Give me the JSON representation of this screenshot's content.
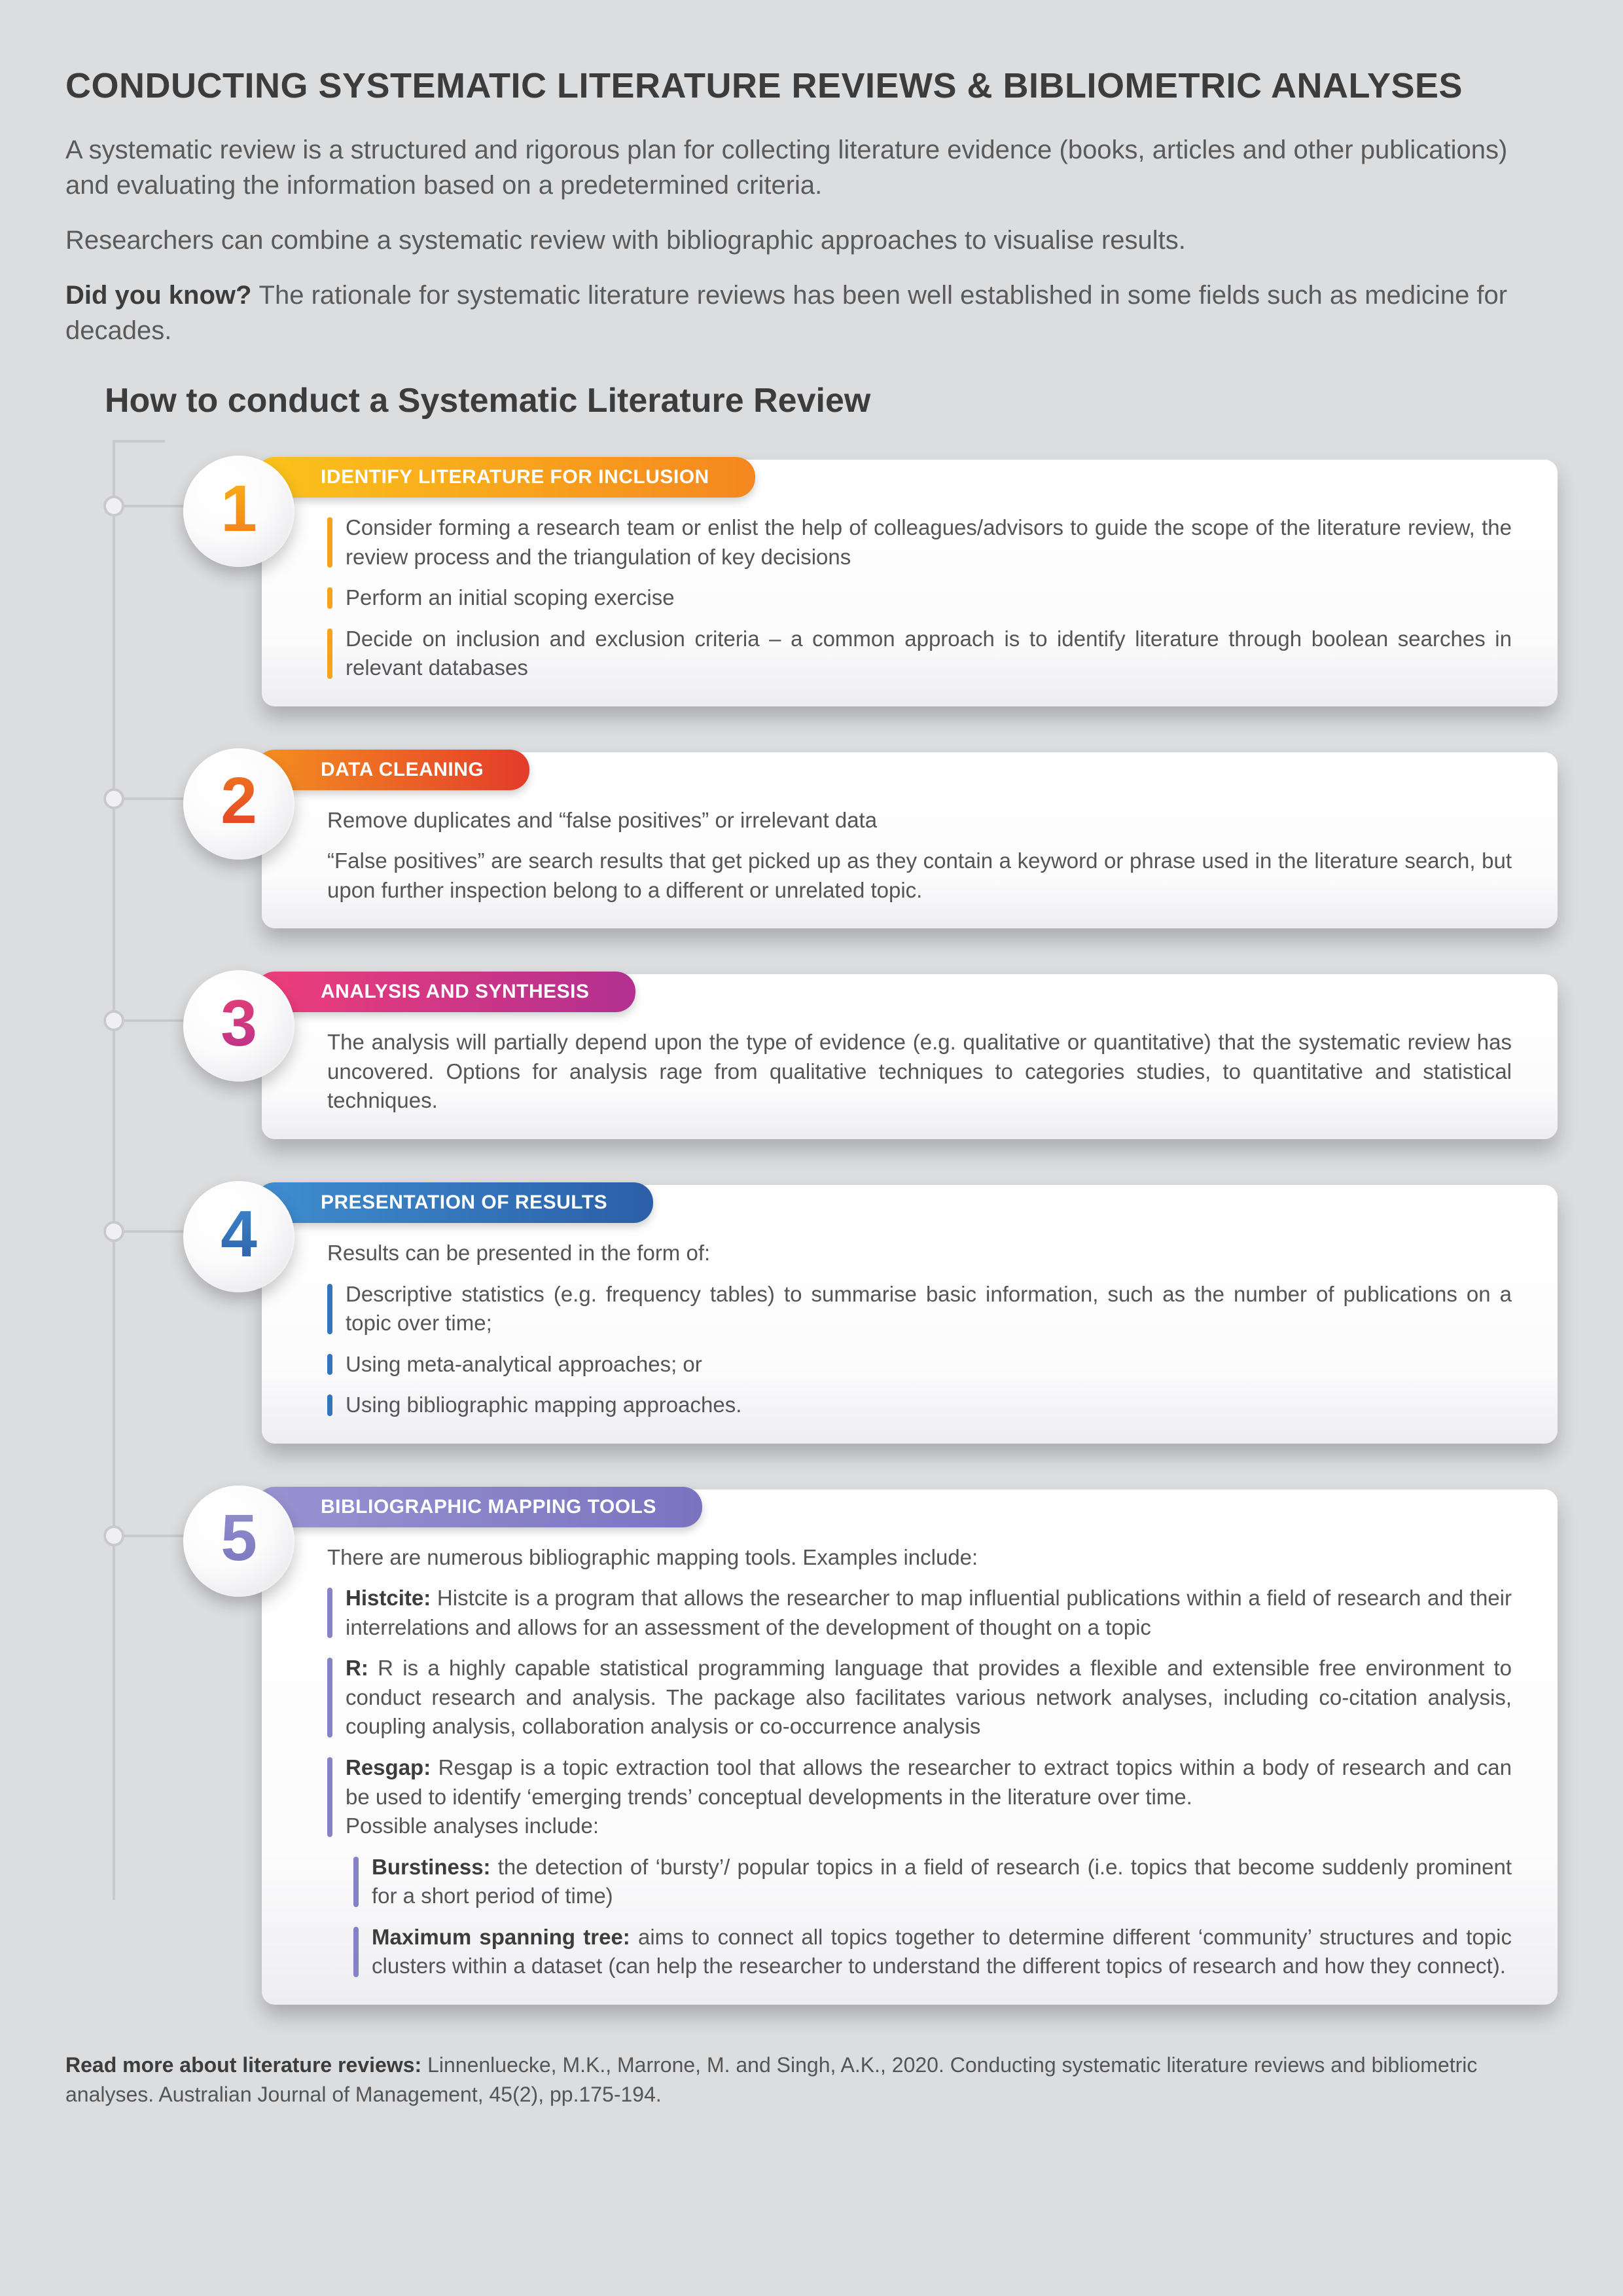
{
  "title": "CONDUCTING SYSTEMATIC LITERATURE REVIEWS & BIBLIOMETRIC ANALYSES",
  "intro": {
    "p1": "A systematic review is a structured and rigorous plan for collecting literature evidence (books, articles and other publications) and evaluating the information based on a predetermined criteria.",
    "p2": "Researchers can combine a systematic review with bibliographic approaches to visualise results.",
    "p3_lead": "Did you know? ",
    "p3_rest": "The rationale for systematic literature reviews has been well established in some fields such as medicine for decades."
  },
  "subtitle": "How to conduct a Systematic Literature Review",
  "colors": {
    "page_bg": "#dcdddf",
    "text": "#4a4a4a",
    "heading": "#3c3c3c",
    "line": "#c8c9cd"
  },
  "steps": [
    {
      "num": "1",
      "tab": "IDENTIFY LITERATURE FOR INCLUSION",
      "grad_a": "#fbc31b",
      "grad_b": "#f58720",
      "num_a": "#f9b516",
      "num_b": "#f17a1f",
      "bullet_color": "#f5a21e",
      "paras": [
        {
          "t": "Consider forming a research team or enlist the help of colleagues/advisors to guide the scope of the literature review, the review process and the triangulation of key decisions",
          "b": true
        },
        {
          "t": "Perform an initial scoping exercise",
          "b": true
        },
        {
          "t": "Decide on inclusion and exclusion criteria – a common approach is to identify literature through boolean searches in relevant databases",
          "b": true
        }
      ]
    },
    {
      "num": "2",
      "tab": "DATA CLEANING",
      "grad_a": "#f59120",
      "grad_b": "#e43b2a",
      "num_a": "#f07a1e",
      "num_b": "#e23d29",
      "bullet_color": "#ea5a24",
      "paras": [
        {
          "t": "Remove duplicates and “false positives” or irrelevant data",
          "b": false
        },
        {
          "t": "“False positives” are search results that get picked up as they contain a keyword or phrase used in the literature search, but upon further inspection belong to a different or unrelated topic.",
          "b": false
        }
      ]
    },
    {
      "num": "3",
      "tab": "ANALYSIS AND SYNTHESIS",
      "grad_a": "#ee3e7a",
      "grad_b": "#b23090",
      "num_a": "#ea3f72",
      "num_b": "#b4318e",
      "bullet_color": "#d13684",
      "paras": [
        {
          "t": "The analysis will partially depend upon the type of evidence (e.g. qualitative or quantitative) that the systematic review has uncovered. Options for analysis rage from qualitative techniques to categories studies, to quantitative and statistical techniques.",
          "b": false
        }
      ]
    },
    {
      "num": "4",
      "tab": "PRESENTATION OF RESULTS",
      "grad_a": "#3f8ed0",
      "grad_b": "#2b5fa8",
      "num_a": "#3d88cc",
      "num_b": "#2c5ea6",
      "bullet_color": "#3374bb",
      "paras": [
        {
          "t": "Results can be presented in the form of:",
          "b": false
        },
        {
          "t": "Descriptive statistics (e.g. frequency tables) to summarise basic information, such as the number of publications on a topic over time;",
          "b": true
        },
        {
          "t": "Using meta-analytical approaches; or",
          "b": true
        },
        {
          "t": "Using bibliographic mapping approaches.",
          "b": true
        }
      ]
    },
    {
      "num": "5",
      "tab": "BIBLIOGRAPHIC MAPPING TOOLS",
      "grad_a": "#9a93d2",
      "grad_b": "#7a74c0",
      "num_a": "#938fce",
      "num_b": "#7a76c0",
      "bullet_color": "#8682c8",
      "intro": "There are numerous bibliographic mapping tools. Examples include:",
      "tools": [
        {
          "name": "Histcite:",
          "desc": " Histcite is a program that allows the researcher to map influential publications within a field of research and their interrelations and allows for an assessment of the development of thought on a topic"
        },
        {
          "name": "R:",
          "desc": " R is a highly capable statistical programming language that provides a flexible and extensible free environment to conduct research and analysis. The package also facilitates various network analyses, including co-citation analysis, coupling analysis, collaboration analysis or co-occurrence analysis"
        },
        {
          "name": "Resgap:",
          "desc": " Resgap is a topic extraction tool that allows the researcher to extract topics within a body of research and can be used to identify ‘emerging trends’ conceptual developments in the literature over time.",
          "tail": "Possible analyses include:"
        }
      ],
      "nested": [
        {
          "name": "Burstiness:",
          "desc": " the detection of ‘bursty’/ popular topics in a field of research (i.e. topics that become suddenly prominent for a short period of time)"
        },
        {
          "name": "Maximum spanning tree:",
          "desc": " aims to connect all topics together to determine different ‘community’ structures and topic clusters within a dataset (can help the researcher to understand the different topics of research and how they connect)."
        }
      ]
    }
  ],
  "footer": {
    "lead": "Read more about literature reviews: ",
    "rest": "Linnenluecke, M.K., Marrone, M. and Singh, A.K., 2020. Conducting systematic literature reviews and bibliometric analyses. Australian Journal of Management, 45(2), pp.175-194."
  }
}
